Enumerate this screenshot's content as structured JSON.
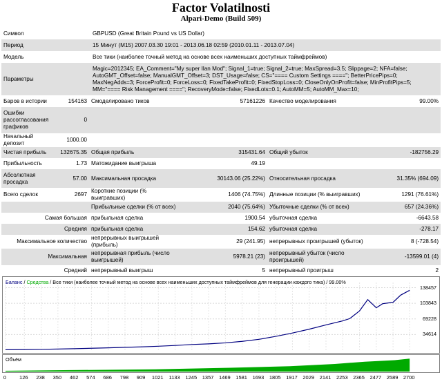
{
  "header": {
    "title": "Factor Volatilnosti",
    "subtitle": "Alpari-Demo (Build 509)"
  },
  "report": {
    "symbol_label": "Символ",
    "symbol_value": "GBPUSD (Great Britain Pound vs US Dollar)",
    "period_label": "Период",
    "period_value": "15 Минут (M15) 2007.03.30 19:01 - 2013.06.18 02:59 (2010.01.11 - 2013.07.04)",
    "model_label": "Модель",
    "model_value": "Все тики (наиболее точный метод на основе всех наименьших доступных таймфреймов)",
    "params_label": "Параметры",
    "params_value": "Magic=2012345; EA_Comment=\"My super Ilan Mod\"; Signal_1=true; Signal_2=true; MaxSpread=3.5; Slippage=2; NFA=false; AutoGMT_Offset=false; ManualGMT_Offset=3; DST_Usage=false; CS=\"==== Custom Settings ====\"; BetterPricePips=0; MaxNegAdds=3; ForceProfit=0; ForceLoss=0; FixedTakeProfit=0; FixedStopLoss=0; CloseOnlyOnProfit=false; MinProfitPips=5; MM=\"==== Risk Management ====\"; RecoveryMode=false; FixedLots=0.1; AutoMM=5; AutoMM_Max=10;",
    "bars_label": "Баров в истории",
    "bars_value": "154163",
    "ticks_label": "Смоделировано тиков",
    "ticks_value": "57161226",
    "quality_label": "Качество моделирования",
    "quality_value": "99.00%",
    "errors_label": "Ошибки рассогласования графиков",
    "errors_value": "0",
    "deposit_label": "Начальный депозит",
    "deposit_value": "1000.00",
    "net_label": "Чистая прибыль",
    "net_value": "132675.35",
    "gross_profit_label": "Общая прибыль",
    "gross_profit_value": "315431.64",
    "gross_loss_label": "Общий убыток",
    "gross_loss_value": "-182756.29",
    "pf_label": "Прибыльность",
    "pf_value": "1.73",
    "expect_label": "Матожидание выигрыша",
    "expect_value": "49.19",
    "abs_dd_label": "Абсолютная просадка",
    "abs_dd_value": "57.00",
    "max_dd_label": "Максимальная просадка",
    "max_dd_value": "30143.06 (25.22%)",
    "rel_dd_label": "Относительная просадка",
    "rel_dd_value": "31.35% (694.09)",
    "trades_label": "Всего сделок",
    "trades_value": "2697",
    "short_label": "Короткие позиции (% выигравших)",
    "short_value": "1406 (74.75%)",
    "long_label": "Длинные позиции (% выигравших)",
    "long_value": "1291 (76.61%)",
    "profit_trades_label": "Прибыльные сделки (% от всех)",
    "profit_trades_value": "2040 (75.64%)",
    "loss_trades_label": "Убыточные сделки (% от всех)",
    "loss_trades_value": "657 (24.36%)",
    "largest_label": "Самая большая",
    "largest_profit_label": "прибыльная сделка",
    "largest_profit_value": "1900.54",
    "largest_loss_label": "убыточная сделка",
    "largest_loss_value": "-6643.58",
    "average_label": "Средняя",
    "average_profit_label": "прибыльная сделка",
    "average_profit_value": "154.62",
    "average_loss_label": "убыточная сделка",
    "average_loss_value": "-278.17",
    "max_count_label": "Максимальное количество",
    "max_cons_wins_label": "непрерывных выигрышей (прибыль)",
    "max_cons_wins_value": "29 (241.95)",
    "max_cons_losses_label": "непрерывных проигрышей (убыток)",
    "max_cons_losses_value": "8 (-728.54)",
    "maximal_label": "Максимальная",
    "maximal_profit_label": "непрерывная прибыль (число выигрышей)",
    "maximal_profit_value": "5978.21 (23)",
    "maximal_loss_label": "непрерывный убыток (число проигрышей)",
    "maximal_loss_value": "-13599.01 (4)",
    "avg_cons_label": "Средний",
    "avg_cons_wins_label": "непрерывный выигрыш",
    "avg_cons_wins_value": "5",
    "avg_cons_losses_label": "непрерывный проигрыш",
    "avg_cons_losses_value": "2"
  },
  "chart": {
    "legend_balance": "Баланс",
    "legend_sep": " / ",
    "legend_equity": "Средства",
    "legend_rest": " / Все тики (наиболее точный метод на основе всех наименьших доступных таймфреймов для генерации каждого тика) / 99.00%",
    "volume_label": "Объём",
    "balance_color": "#000080",
    "equity_color": "#00aa00",
    "volume_color": "#00aa00"
  },
  "chart_data": {
    "type": "line",
    "title": "",
    "ylim": [
      0,
      150000
    ],
    "y_ticks": [
      {
        "value": 138457,
        "label": "138457"
      },
      {
        "value": 103843,
        "label": "103843"
      },
      {
        "value": 69228,
        "label": "69228"
      },
      {
        "value": 34614,
        "label": "34614"
      }
    ],
    "x_ticks": [
      "0",
      "126",
      "238",
      "350",
      "462",
      "574",
      "686",
      "798",
      "909",
      "1021",
      "1133",
      "1245",
      "1357",
      "1469",
      "1581",
      "1693",
      "1805",
      "1917",
      "2029",
      "2141",
      "2253",
      "2365",
      "2477",
      "2589",
      "2700"
    ],
    "xlim": [
      0,
      2750
    ],
    "series": [
      {
        "name": "Баланс",
        "x": [
          0,
          126,
          238,
          350,
          462,
          574,
          686,
          798,
          909,
          1021,
          1133,
          1245,
          1357,
          1469,
          1581,
          1693,
          1805,
          1917,
          2029,
          2141,
          2253,
          2300,
          2365,
          2420,
          2477,
          2520,
          2589,
          2640,
          2700
        ],
        "values": [
          1000,
          1300,
          1800,
          2500,
          3200,
          4200,
          5200,
          6300,
          7300,
          8700,
          10400,
          12500,
          14000,
          16200,
          19500,
          24000,
          30500,
          38000,
          46500,
          56000,
          65000,
          70000,
          87000,
          112000,
          94000,
          103000,
          106000,
          122000,
          132675
        ]
      }
    ],
    "volume": {
      "x": [
        0,
        1000,
        1500,
        1900,
        2200,
        2400,
        2600,
        2700
      ],
      "values": [
        0.05,
        0.15,
        0.25,
        0.35,
        0.5,
        0.65,
        0.75,
        0.85
      ]
    }
  }
}
